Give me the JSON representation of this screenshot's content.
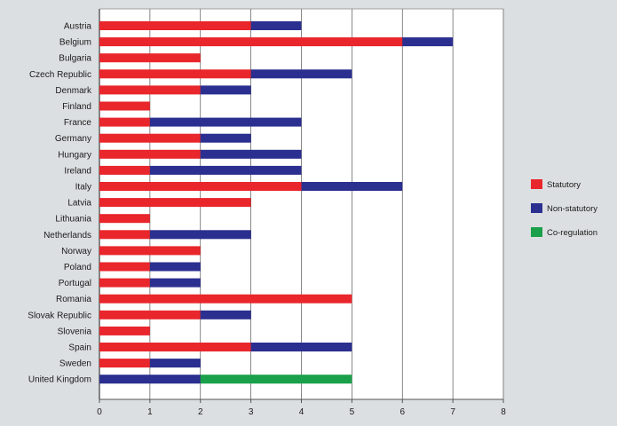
{
  "chart_data": {
    "type": "bar",
    "orientation": "horizontal",
    "stacked": true,
    "categories": [
      "Austria",
      "Belgium",
      "Bulgaria",
      "Czech Republic",
      "Denmark",
      "Finland",
      "France",
      "Germany",
      "Hungary",
      "Ireland",
      "Italy",
      "Latvia",
      "Lithuania",
      "Netherlands",
      "Norway",
      "Poland",
      "Portugal",
      "Romania",
      "Slovak Republic",
      "Slovenia",
      "Spain",
      "Sweden",
      "United Kingdom"
    ],
    "series": [
      {
        "name": "Statutory",
        "color": "#e8262b",
        "values": [
          3,
          6,
          2,
          3,
          2,
          1,
          1,
          2,
          2,
          1,
          4,
          3,
          1,
          1,
          2,
          1,
          1,
          5,
          2,
          1,
          3,
          1,
          0
        ]
      },
      {
        "name": "Non-statutory",
        "color": "#2b2f8f",
        "values": [
          1,
          1,
          0,
          2,
          1,
          0,
          3,
          1,
          2,
          3,
          2,
          0,
          0,
          2,
          0,
          1,
          1,
          0,
          1,
          0,
          2,
          1,
          2
        ]
      },
      {
        "name": "Co-regulation",
        "color": "#1aa04a",
        "values": [
          0,
          0,
          0,
          0,
          0,
          0,
          0,
          0,
          0,
          0,
          0,
          0,
          0,
          0,
          0,
          0,
          0,
          0,
          0,
          0,
          0,
          0,
          3
        ]
      }
    ],
    "xlim": [
      0,
      8
    ],
    "xticks": [
      "0",
      "1",
      "2",
      "3",
      "4",
      "5",
      "6",
      "7",
      "8"
    ],
    "grid": true,
    "legend_position": "right"
  }
}
